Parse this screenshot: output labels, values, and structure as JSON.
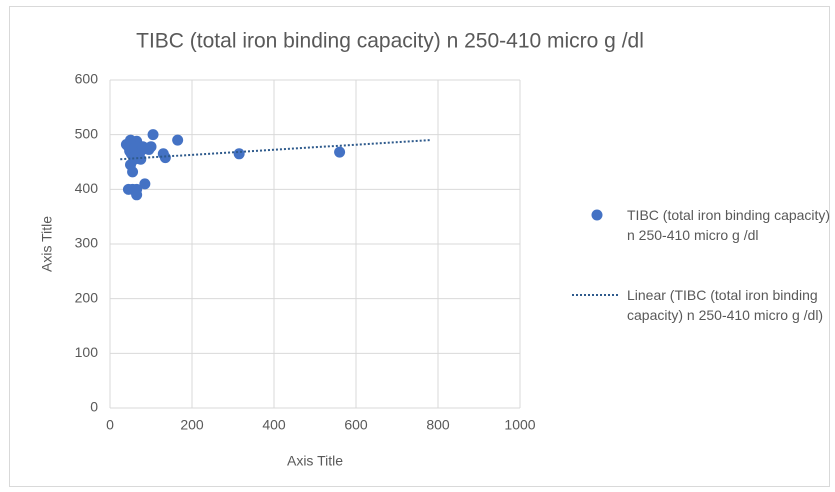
{
  "chart_data": {
    "type": "scatter",
    "title": "TIBC (total iron binding capacity) n 250-410 micro g /dl",
    "x_label": "Axis Title",
    "y_label": "Axis Title",
    "series": [
      {
        "name": "TIBC (total iron binding capacity) n 250-410 micro g /dl",
        "color": "#4472c4",
        "x": [
          40,
          45,
          50,
          55,
          48,
          52,
          60,
          65,
          70,
          75,
          80,
          85,
          90,
          100,
          105,
          130,
          135,
          165,
          315,
          560,
          45,
          55,
          65,
          65,
          85,
          55,
          50,
          60,
          75,
          60,
          95
        ],
        "values": [
          482,
          478,
          490,
          485,
          470,
          465,
          475,
          488,
          480,
          470,
          478,
          475,
          475,
          478,
          500,
          465,
          458,
          490,
          465,
          468,
          400,
          400,
          400,
          390,
          410,
          432,
          445,
          455,
          455,
          460,
          473
        ]
      }
    ],
    "trendline": {
      "name": "Linear (TIBC (total iron binding capacity) n 250-410 micro g /dl)",
      "color": "#2e5a8c",
      "x": [
        25,
        780
      ],
      "values": [
        455,
        490
      ]
    },
    "xlim": [
      0,
      1000
    ],
    "xticks": [
      0,
      200,
      400,
      600,
      800,
      1000
    ],
    "ylim": [
      0,
      600
    ],
    "yticks": [
      0,
      100,
      200,
      300,
      400,
      500,
      600
    ],
    "grid": true,
    "legend": "right"
  }
}
